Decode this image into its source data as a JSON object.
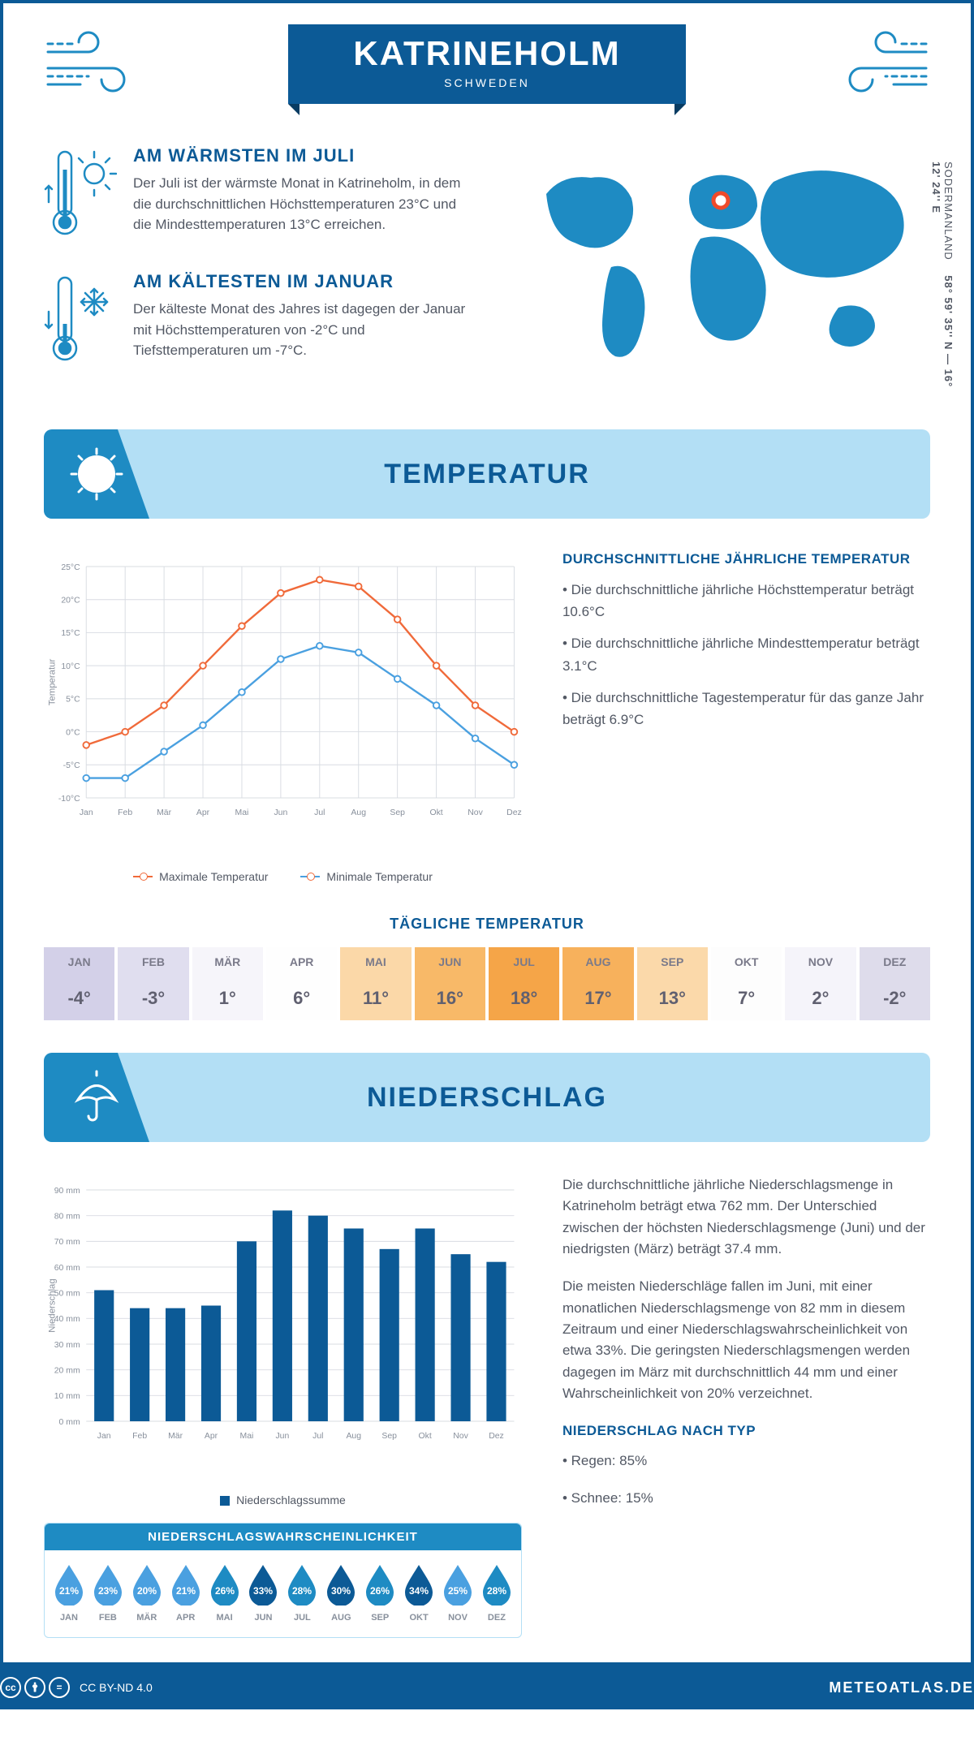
{
  "header": {
    "title": "KATRINEHOLM",
    "subtitle": "SCHWEDEN"
  },
  "coords": {
    "region": "SODERMANLAND",
    "lat": "58° 59' 35'' N",
    "lon": "16° 12' 24'' E"
  },
  "intro": {
    "warm": {
      "title": "AM WÄRMSTEN IM JULI",
      "text": "Der Juli ist der wärmste Monat in Katrineholm, in dem die durchschnittlichen Höchsttemperaturen 23°C und die Mindesttemperaturen 13°C erreichen."
    },
    "cold": {
      "title": "AM KÄLTESTEN IM JANUAR",
      "text": "Der kälteste Monat des Jahres ist dagegen der Januar mit Höchsttemperaturen von -2°C und Tiefsttemperaturen um -7°C."
    }
  },
  "sections": {
    "temp": "TEMPERATUR",
    "precip": "NIEDERSCHLAG"
  },
  "temp_chart": {
    "type": "line",
    "months": [
      "Jan",
      "Feb",
      "Mär",
      "Apr",
      "Mai",
      "Jun",
      "Jul",
      "Aug",
      "Sep",
      "Okt",
      "Nov",
      "Dez"
    ],
    "max_series": [
      -2,
      0,
      4,
      10,
      16,
      21,
      23,
      22,
      17,
      10,
      4,
      0
    ],
    "min_series": [
      -7,
      -7,
      -3,
      1,
      6,
      11,
      13,
      12,
      8,
      4,
      -1,
      -5
    ],
    "max_color": "#f06a3a",
    "min_color": "#4aa0e0",
    "ylabel": "Temperatur",
    "ylim": [
      -10,
      25
    ],
    "ytick_step": 5,
    "grid_color": "#d8dce2",
    "legend_max": "Maximale Temperatur",
    "legend_min": "Minimale Temperatur"
  },
  "temp_info": {
    "title": "DURCHSCHNITTLICHE JÄHRLICHE TEMPERATUR",
    "bullets": [
      "• Die durchschnittliche jährliche Höchsttemperatur beträgt 10.6°C",
      "• Die durchschnittliche jährliche Mindesttemperatur beträgt 3.1°C",
      "• Die durchschnittliche Tagestemperatur für das ganze Jahr beträgt 6.9°C"
    ]
  },
  "daily": {
    "title": "TÄGLICHE TEMPERATUR",
    "months": [
      "JAN",
      "FEB",
      "MÄR",
      "APR",
      "MAI",
      "JUN",
      "JUL",
      "AUG",
      "SEP",
      "OKT",
      "NOV",
      "DEZ"
    ],
    "values": [
      "-4°",
      "-3°",
      "1°",
      "6°",
      "11°",
      "16°",
      "18°",
      "17°",
      "13°",
      "7°",
      "2°",
      "-2°"
    ],
    "colors": [
      "#d3d0e8",
      "#e0deef",
      "#f6f5fa",
      "#fefefe",
      "#fbd8a8",
      "#f8b968",
      "#f5a548",
      "#f7b15c",
      "#fbd9aa",
      "#fdfdfd",
      "#f5f4fa",
      "#dedceb"
    ]
  },
  "precip_chart": {
    "type": "bar",
    "months": [
      "Jan",
      "Feb",
      "Mär",
      "Apr",
      "Mai",
      "Jun",
      "Jul",
      "Aug",
      "Sep",
      "Okt",
      "Nov",
      "Dez"
    ],
    "values": [
      51,
      44,
      44,
      45,
      70,
      82,
      80,
      75,
      67,
      75,
      65,
      62
    ],
    "bar_color": "#0c5a96",
    "ylabel": "Niederschlag",
    "ylim": [
      0,
      90
    ],
    "ytick_step": 10,
    "unit": "mm",
    "grid_color": "#d8dce2",
    "legend": "Niederschlagssumme"
  },
  "precip_text": {
    "p1": "Die durchschnittliche jährliche Niederschlagsmenge in Katrineholm beträgt etwa 762 mm. Der Unterschied zwischen der höchsten Niederschlagsmenge (Juni) und der niedrigsten (März) beträgt 37.4 mm.",
    "p2": "Die meisten Niederschläge fallen im Juni, mit einer monatlichen Niederschlagsmenge von 82 mm in diesem Zeitraum und einer Niederschlagswahrscheinlichkeit von etwa 33%. Die geringsten Niederschlagsmengen werden dagegen im März mit durchschnittlich 44 mm und einer Wahrscheinlichkeit von 20% verzeichnet.",
    "type_title": "NIEDERSCHLAG NACH TYP",
    "types": [
      "• Regen: 85%",
      "• Schnee: 15%"
    ]
  },
  "prob": {
    "title": "NIEDERSCHLAGSWAHRSCHEINLICHKEIT",
    "months": [
      "JAN",
      "FEB",
      "MÄR",
      "APR",
      "MAI",
      "JUN",
      "JUL",
      "AUG",
      "SEP",
      "OKT",
      "NOV",
      "DEZ"
    ],
    "values": [
      "21%",
      "23%",
      "20%",
      "21%",
      "26%",
      "33%",
      "28%",
      "30%",
      "26%",
      "34%",
      "25%",
      "28%"
    ],
    "colors": [
      "#4aa0e0",
      "#4aa0e0",
      "#4aa0e0",
      "#4aa0e0",
      "#1e8bc3",
      "#0c5a96",
      "#1e8bc3",
      "#0c5a96",
      "#1e8bc3",
      "#0c5a96",
      "#4aa0e0",
      "#1e8bc3"
    ]
  },
  "footer": {
    "license": "CC BY-ND 4.0",
    "site": "METEOATLAS.DE"
  },
  "colors": {
    "brand": "#0c5a96",
    "accent": "#1e8bc3",
    "light": "#b3dff5",
    "text": "#525864"
  }
}
